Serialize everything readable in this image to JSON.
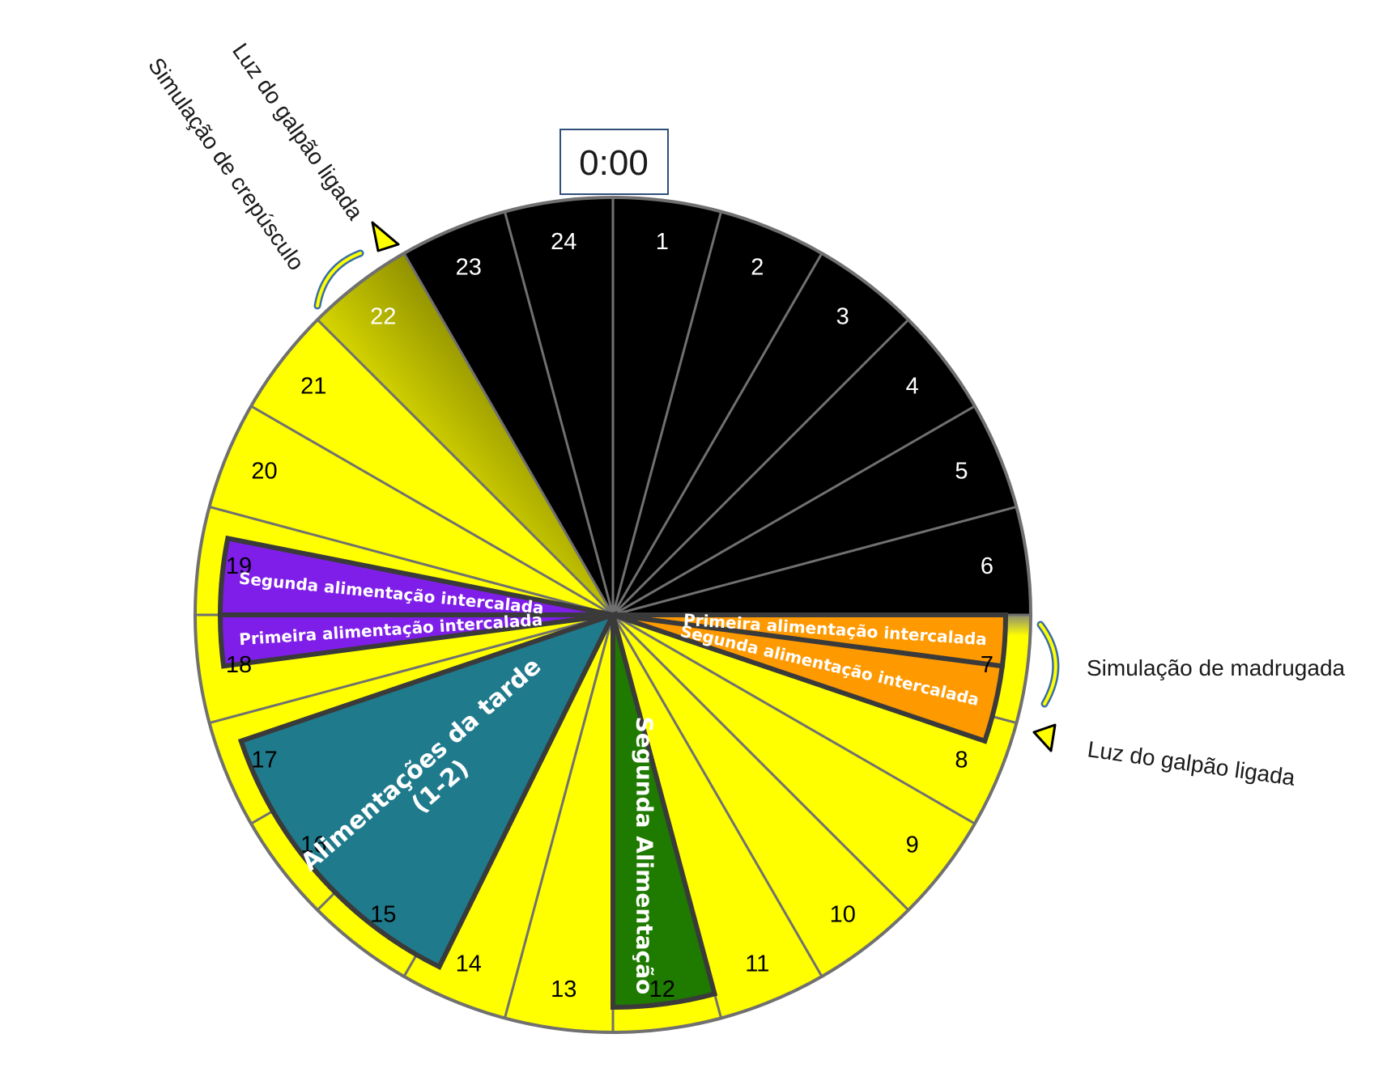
{
  "clock": {
    "label": "0:00"
  },
  "hours": [
    {
      "label": "1",
      "fill": "#000000",
      "text_color": "#ffffff"
    },
    {
      "label": "2",
      "fill": "#000000",
      "text_color": "#ffffff"
    },
    {
      "label": "3",
      "fill": "#000000",
      "text_color": "#ffffff"
    },
    {
      "label": "4",
      "fill": "#000000",
      "text_color": "#ffffff"
    },
    {
      "label": "5",
      "fill": "#000000",
      "text_color": "#ffffff"
    },
    {
      "label": "6",
      "fill": "#000000",
      "text_color": "#ffffff"
    },
    {
      "label": "7",
      "fill": "#ffff00",
      "text_color": "#000000"
    },
    {
      "label": "8",
      "fill": "#ffff00",
      "text_color": "#000000"
    },
    {
      "label": "9",
      "fill": "#ffff00",
      "text_color": "#000000"
    },
    {
      "label": "10",
      "fill": "#ffff00",
      "text_color": "#000000"
    },
    {
      "label": "11",
      "fill": "#ffff00",
      "text_color": "#000000"
    },
    {
      "label": "12",
      "fill": "#ffff00",
      "text_color": "#000000"
    },
    {
      "label": "13",
      "fill": "#ffff00",
      "text_color": "#000000"
    },
    {
      "label": "14",
      "fill": "#ffff00",
      "text_color": "#000000"
    },
    {
      "label": "15",
      "fill": "#ffff00",
      "text_color": "#000000"
    },
    {
      "label": "16",
      "fill": "#ffff00",
      "text_color": "#000000"
    },
    {
      "label": "17",
      "fill": "#ffff00",
      "text_color": "#000000"
    },
    {
      "label": "18",
      "fill": "#ffff00",
      "text_color": "#000000"
    },
    {
      "label": "19",
      "fill": "#ffff00",
      "text_color": "#000000"
    },
    {
      "label": "20",
      "fill": "#ffff00",
      "text_color": "#000000"
    },
    {
      "label": "21",
      "fill": "#ffff00",
      "text_color": "#000000"
    },
    {
      "label": "22",
      "fill": "gradient-dusk",
      "text_color": "#ffffff"
    },
    {
      "label": "23",
      "fill": "#000000",
      "text_color": "#ffffff"
    },
    {
      "label": "24",
      "fill": "#000000",
      "text_color": "#ffffff"
    }
  ],
  "feedings": [
    {
      "label": "Primeira alimentação intercalada",
      "lines": [
        "Primeira alimentação intercalada"
      ],
      "color": "#ff9900",
      "start_hour": 6.0,
      "end_hour": 6.5
    },
    {
      "label": "Segunda alimentação intercalada",
      "lines": [
        "Segunda alimentação intercalada"
      ],
      "color": "#ff9900",
      "start_hour": 6.5,
      "end_hour": 7.25
    },
    {
      "label": "Segunda Alimentação",
      "lines": [
        "Segunda Alimentação"
      ],
      "color": "#1f7a00",
      "start_hour": 11.0,
      "end_hour": 12.0
    },
    {
      "label": "Alimentações da tarde (1-2)",
      "lines": [
        "Alimentações da tarde",
        "(1-2)"
      ],
      "color": "#1f7a8c",
      "start_hour": 13.75,
      "end_hour": 16.75
    },
    {
      "label": "Primeira alimentação intercalada",
      "lines": [
        "Primeira alimentação intercalada"
      ],
      "color": "#7f1ee8",
      "start_hour": 17.5,
      "end_hour": 18.0
    },
    {
      "label": "Segunda alimentação intercalada",
      "lines": [
        "Segunda alimentação intercalada"
      ],
      "color": "#7f1ee8",
      "start_hour": 18.0,
      "end_hour": 18.75
    }
  ],
  "annotations": {
    "dusk_simulation": "Simulação de crepúsculo",
    "lights_on_top": "Luz do galpão ligada",
    "dawn_simulation": "Simulação de madrugada",
    "lights_on_right": "Luz do galpão ligada"
  },
  "colors": {
    "night": "#000000",
    "light": "#ffff00",
    "divider": "#707070",
    "band_outline": "#3a3a3a",
    "dusk_gradient": [
      "#ffff00",
      "#3d3d00"
    ],
    "marker_yellow": "#ffff00",
    "arc_blue": "#3b6ea5"
  },
  "icons": [
    "triangle-marker-icon",
    "curved-arrow-icon"
  ]
}
